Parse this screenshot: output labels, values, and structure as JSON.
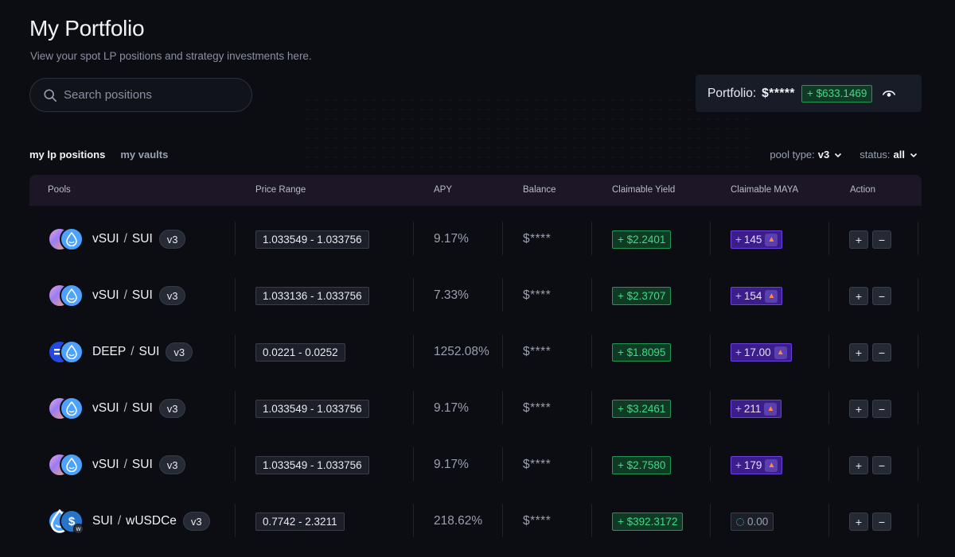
{
  "page": {
    "title": "My Portfolio",
    "subtitle": "View your spot LP positions and strategy investments here."
  },
  "search": {
    "placeholder": "Search positions"
  },
  "portfolio": {
    "label": "Portfolio:",
    "value": "$*****",
    "change": "+ $633.1469"
  },
  "tabs": [
    {
      "label": "my lp positions",
      "active": true
    },
    {
      "label": "my vaults",
      "active": false
    }
  ],
  "filters": {
    "pool_type_label": "pool type:",
    "pool_type_value": "v3",
    "status_label": "status:",
    "status_value": "all"
  },
  "columns": [
    "Pools",
    "Price Range",
    "APY",
    "Balance",
    "Claimable Yield",
    "Claimable MAYA",
    "Action"
  ],
  "rows": [
    {
      "token_a": "vSUI",
      "token_b": "SUI",
      "version": "v3",
      "range": "1.033549 - 1.033756",
      "apy": "9.17%",
      "balance": "$****",
      "yield": "+ $2.2401",
      "maya": "145",
      "maya_prefix": "+"
    },
    {
      "token_a": "vSUI",
      "token_b": "SUI",
      "version": "v3",
      "range": "1.033136 - 1.033756",
      "apy": "7.33%",
      "balance": "$****",
      "yield": "+ $2.3707",
      "maya": "154",
      "maya_prefix": "+"
    },
    {
      "token_a": "DEEP",
      "token_b": "SUI",
      "version": "v3",
      "range": "0.0221 - 0.0252",
      "apy": "1252.08%",
      "balance": "$****",
      "yield": "+ $1.8095",
      "maya": "17.00",
      "maya_prefix": "+"
    },
    {
      "token_a": "vSUI",
      "token_b": "SUI",
      "version": "v3",
      "range": "1.033549 - 1.033756",
      "apy": "9.17%",
      "balance": "$****",
      "yield": "+ $3.2461",
      "maya": "211",
      "maya_prefix": "+"
    },
    {
      "token_a": "vSUI",
      "token_b": "SUI",
      "version": "v3",
      "range": "1.033549 - 1.033756",
      "apy": "9.17%",
      "balance": "$****",
      "yield": "+ $2.7580",
      "maya": "179",
      "maya_prefix": "+"
    },
    {
      "token_a": "SUI",
      "token_b": "wUSDCe",
      "version": "v3",
      "range": "0.7742 - 2.3211",
      "apy": "218.62%",
      "balance": "$****",
      "yield": "+ $392.3172",
      "maya": "0.00",
      "maya_prefix": ""
    }
  ],
  "action_labels": {
    "add": "+",
    "remove": "−"
  },
  "colors": {
    "background": "#0b0d13",
    "yield_green": "#41d98a",
    "maya_purple": "#3b1e8a",
    "header_bg": "#1c1626"
  }
}
